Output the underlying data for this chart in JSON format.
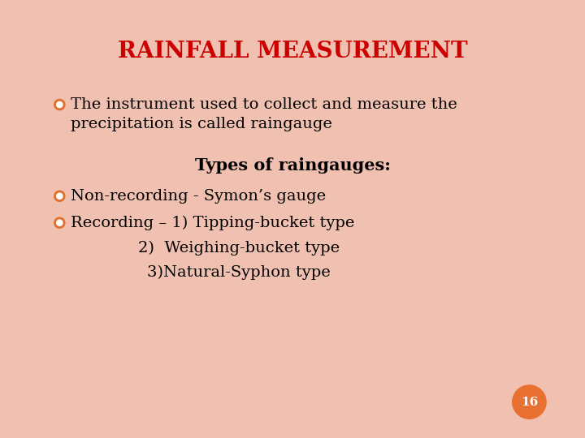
{
  "title": "RAINFALL MEASUREMENT",
  "title_color": "#cc0000",
  "title_fontsize": 20,
  "background_color": "#ffffff",
  "border_color": "#f0c0b0",
  "bullet_color": "#e07030",
  "text_color": "#000000",
  "bullet1_text1": "The instrument used to collect and measure the",
  "bullet1_text2": "precipitation is called raingauge",
  "subheading": "Types of raingauges:",
  "subheading_fontsize": 15,
  "bullet2_text": "Non-recording - Symon’s gauge",
  "bullet3_text": "Recording – 1) Tipping-bucket type",
  "line2_text": "2)  Weighing-bucket type",
  "line3_text": "3)Natural-Syphon type",
  "page_number": "16",
  "page_circle_color": "#e87030",
  "page_text_color": "#ffffff",
  "main_fontsize": 14,
  "font_family": "DejaVu Serif"
}
